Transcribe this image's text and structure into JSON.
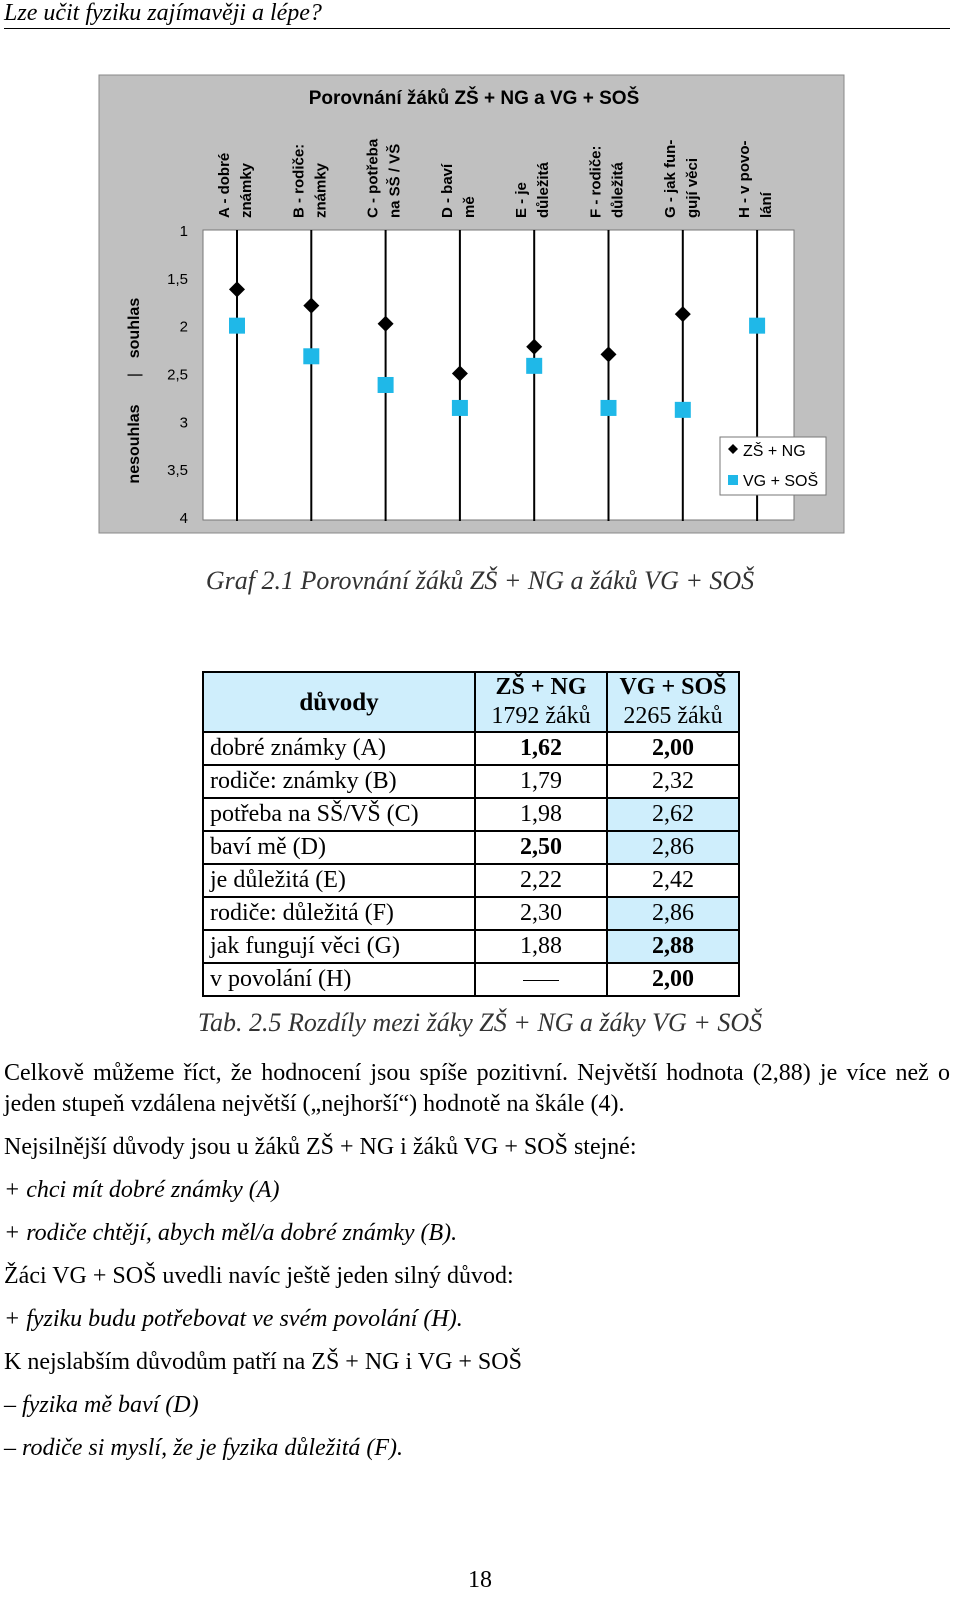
{
  "header": {
    "title": "Lze učit fyziku zajímavěji a lépe?"
  },
  "chart_data": {
    "type": "scatter",
    "title": "Porovnání žáků ZŠ + NG a VG + SOŠ",
    "ylabel_top": "souhlas",
    "ylabel_sep": "|",
    "ylabel_bottom": "nesouhlas",
    "y_reversed": true,
    "ylim": [
      1,
      4
    ],
    "yticks": [
      "1",
      "1,5",
      "2",
      "2,5",
      "3",
      "3,5",
      "4"
    ],
    "grid": false,
    "legend_position": "bottom-right",
    "categories": [
      [
        "A - dobré",
        "známky"
      ],
      [
        "B - rodiče:",
        "známky"
      ],
      [
        "C - potřeba",
        "na SŠ / VŠ"
      ],
      [
        "D - baví",
        "mě"
      ],
      [
        "E - je",
        "důležitá"
      ],
      [
        "F - rodiče:",
        "důležitá"
      ],
      [
        "G - jak fun-",
        "gují věci"
      ],
      [
        "H - v povo-",
        "lání"
      ]
    ],
    "series": [
      {
        "name": "ZŠ + NG",
        "marker": "diamond",
        "color": "#000000",
        "values": [
          1.62,
          1.79,
          1.98,
          2.5,
          2.22,
          2.3,
          1.88,
          null
        ]
      },
      {
        "name": "VG + SOŠ",
        "marker": "square",
        "color": "#1fb8e8",
        "values": [
          2.0,
          2.32,
          2.62,
          2.86,
          2.42,
          2.86,
          2.88,
          2.0
        ]
      }
    ]
  },
  "captions": {
    "graph": "Graf 2.1 Porovnání žáků ZŠ + NG a žáků VG + SOŠ",
    "table": "Tab. 2.5 Rozdíly mezi žáky ZŠ + NG a žáky VG + SOŠ"
  },
  "table": {
    "head_reason": "důvody",
    "col1_title": "ZŠ + NG",
    "col1_sub": "1792 žáků",
    "col2_title": "VG + SOŠ",
    "col2_sub": "2265 žáků",
    "rows": [
      {
        "reason": "dobré známky (A)",
        "v1": "1,62",
        "v2": "2,00"
      },
      {
        "reason": "rodiče: známky (B)",
        "v1": "1,79",
        "v2": "2,32"
      },
      {
        "reason": "potřeba na SŠ/VŠ (C)",
        "v1": "1,98",
        "v2": "2,62"
      },
      {
        "reason": "baví mě (D)",
        "v1": "2,50",
        "v2": "2,86"
      },
      {
        "reason": "je důležitá (E)",
        "v1": "2,22",
        "v2": "2,42"
      },
      {
        "reason": "rodiče: důležitá (F)",
        "v1": "2,30",
        "v2": "2,86"
      },
      {
        "reason": "jak fungují věci (G)",
        "v1": "1,88",
        "v2": "2,88"
      },
      {
        "reason": "v povolání (H)",
        "v1": "",
        "v2": "2,00"
      }
    ]
  },
  "text": {
    "p1": "Celkově můžeme říct, že hodnocení jsou spíše pozitivní. Největší hodnota (2,88) je více než o jeden stupeň vzdálena největší („nejhorší“) hodnotě na škále (4).",
    "p2": "Nejsilnější důvody jsou u žáků ZŠ + NG i žáků VG + SOŠ stejné:",
    "p3": "+ chci mít dobré známky (A)",
    "p4": "+ rodiče chtějí, abych měl/a dobré známky (B).",
    "p5": "Žáci VG + SOŠ uvedli navíc ještě jeden silný důvod:",
    "p6": "+ fyziku budu potřebovat ve svém povolání (H).",
    "p7": "K nejslabším důvodům patří na ZŠ + NG i VG + SOŠ",
    "p8": "– fyzika mě baví (D)",
    "p9": "– rodiče si myslí, že je fyzika důležitá (F)."
  },
  "page_number": "18"
}
